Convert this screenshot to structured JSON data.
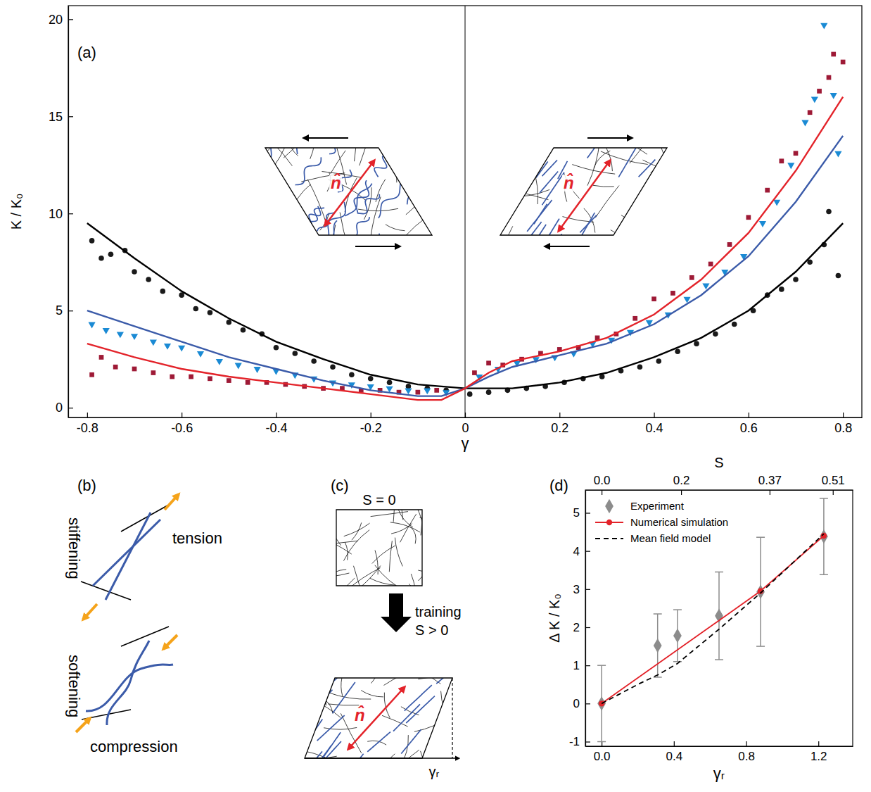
{
  "chart_data": [
    {
      "panel": "(a)",
      "type": "scatter",
      "xlabel": "γ",
      "ylabel": "K / K₀",
      "xlim": [
        -0.84,
        0.84
      ],
      "ylim": [
        -0.5,
        20.7
      ],
      "xticks": [
        -0.8,
        -0.6,
        -0.4,
        -0.2,
        0,
        0.2,
        0.4,
        0.6,
        0.8
      ],
      "yticks": [
        0,
        5,
        10,
        15,
        20
      ],
      "vline": 0,
      "insets": [
        {
          "label": "n̂"
        },
        {
          "label": "n̂"
        }
      ],
      "series": [
        {
          "type": "scatter",
          "marker": "circle",
          "color": "#1a1a1a",
          "x": [
            -0.79,
            -0.77,
            -0.75,
            -0.72,
            -0.7,
            -0.67,
            -0.64,
            -0.6,
            -0.57,
            -0.54,
            -0.5,
            -0.47,
            -0.43,
            -0.4,
            -0.36,
            -0.32,
            -0.28,
            -0.24,
            -0.2,
            -0.16,
            -0.12,
            -0.08,
            -0.04,
            0.01,
            0.05,
            0.09,
            0.13,
            0.17,
            0.21,
            0.25,
            0.29,
            0.33,
            0.37,
            0.41,
            0.45,
            0.49,
            0.53,
            0.57,
            0.61,
            0.64,
            0.67,
            0.7,
            0.73,
            0.76,
            0.77,
            0.79
          ],
          "values": [
            8.6,
            7.7,
            7.9,
            8.1,
            7.0,
            6.6,
            6.0,
            5.8,
            5.1,
            4.9,
            4.4,
            4.0,
            3.8,
            3.1,
            2.8,
            2.4,
            2.1,
            1.7,
            1.5,
            1.3,
            1.1,
            1.0,
            0.9,
            0.7,
            0.8,
            0.9,
            1.0,
            1.1,
            1.3,
            1.5,
            1.6,
            1.9,
            2.1,
            2.4,
            2.9,
            3.3,
            3.8,
            4.3,
            5.0,
            5.8,
            6.1,
            6.6,
            7.5,
            8.4,
            10.1,
            6.8
          ]
        },
        {
          "type": "scatter",
          "marker": "triangle-down",
          "color": "#1a8ad4",
          "x": [
            -0.79,
            -0.76,
            -0.73,
            -0.7,
            -0.66,
            -0.63,
            -0.6,
            -0.56,
            -0.52,
            -0.48,
            -0.44,
            -0.4,
            -0.36,
            -0.32,
            -0.28,
            -0.24,
            -0.2,
            -0.16,
            -0.12,
            -0.08,
            -0.04,
            0.03,
            0.07,
            0.11,
            0.15,
            0.19,
            0.23,
            0.27,
            0.31,
            0.35,
            0.39,
            0.43,
            0.47,
            0.51,
            0.55,
            0.59,
            0.63,
            0.66,
            0.69,
            0.72,
            0.74,
            0.76,
            0.78,
            0.79
          ],
          "values": [
            4.3,
            4.0,
            3.8,
            3.7,
            3.4,
            3.2,
            3.1,
            2.8,
            2.4,
            2.2,
            2.0,
            1.9,
            1.7,
            1.5,
            1.3,
            1.2,
            1.1,
            1.0,
            0.9,
            0.9,
            0.8,
            1.6,
            2.0,
            2.3,
            2.5,
            2.6,
            2.8,
            3.3,
            3.5,
            3.9,
            4.4,
            4.8,
            5.6,
            6.3,
            7.0,
            7.8,
            9.5,
            10.6,
            12.5,
            14.7,
            15.9,
            19.7,
            16.1,
            13.1
          ]
        },
        {
          "type": "scatter",
          "marker": "square",
          "color": "#9e1a36",
          "x": [
            -0.79,
            -0.77,
            -0.74,
            -0.7,
            -0.66,
            -0.62,
            -0.58,
            -0.54,
            -0.5,
            -0.46,
            -0.42,
            -0.38,
            -0.34,
            -0.3,
            -0.26,
            -0.22,
            -0.18,
            -0.14,
            -0.1,
            -0.06,
            0.02,
            0.05,
            0.08,
            0.12,
            0.16,
            0.2,
            0.24,
            0.28,
            0.32,
            0.36,
            0.4,
            0.44,
            0.48,
            0.52,
            0.56,
            0.6,
            0.64,
            0.67,
            0.7,
            0.73,
            0.75,
            0.77,
            0.78,
            0.8
          ],
          "values": [
            1.7,
            2.6,
            2.1,
            2.0,
            1.8,
            1.6,
            1.6,
            1.5,
            1.4,
            1.3,
            1.3,
            1.2,
            1.1,
            1.0,
            1.0,
            0.9,
            0.9,
            0.8,
            0.8,
            0.9,
            1.8,
            2.3,
            2.2,
            2.5,
            2.8,
            3.0,
            3.1,
            3.6,
            3.8,
            4.6,
            5.6,
            5.9,
            6.7,
            7.4,
            8.4,
            9.8,
            11.2,
            12.7,
            13.1,
            15.2,
            16.3,
            17.0,
            18.2,
            17.8
          ]
        },
        {
          "type": "line",
          "color": "#000000",
          "x": [
            -0.8,
            -0.7,
            -0.6,
            -0.5,
            -0.4,
            -0.3,
            -0.2,
            -0.1,
            0,
            0.1,
            0.2,
            0.3,
            0.4,
            0.5,
            0.6,
            0.7,
            0.8
          ],
          "values": [
            9.5,
            7.7,
            6.0,
            4.6,
            3.4,
            2.5,
            1.7,
            1.2,
            1.0,
            1.0,
            1.3,
            1.8,
            2.6,
            3.6,
            5.0,
            7.0,
            9.5
          ]
        },
        {
          "type": "line",
          "color": "#3b5ba9",
          "x": [
            -0.8,
            -0.7,
            -0.6,
            -0.5,
            -0.4,
            -0.3,
            -0.2,
            -0.1,
            -0.05,
            0,
            0.05,
            0.1,
            0.2,
            0.3,
            0.4,
            0.5,
            0.6,
            0.7,
            0.8
          ],
          "values": [
            5.0,
            4.2,
            3.4,
            2.6,
            2.0,
            1.4,
            0.9,
            0.6,
            0.6,
            1.0,
            1.6,
            2.1,
            2.7,
            3.3,
            4.3,
            5.8,
            7.8,
            10.6,
            14.0
          ]
        },
        {
          "type": "line",
          "color": "#e3232a",
          "x": [
            -0.8,
            -0.7,
            -0.6,
            -0.5,
            -0.4,
            -0.3,
            -0.2,
            -0.1,
            -0.05,
            0,
            0.05,
            0.1,
            0.2,
            0.3,
            0.4,
            0.5,
            0.6,
            0.7,
            0.8
          ],
          "values": [
            3.3,
            2.6,
            2.0,
            1.6,
            1.3,
            1.0,
            0.7,
            0.4,
            0.4,
            1.0,
            1.8,
            2.4,
            2.9,
            3.6,
            4.8,
            6.6,
            9.0,
            12.2,
            16.0
          ]
        }
      ]
    },
    {
      "panel": "(d)",
      "type": "scatter",
      "xlabel": "γᵣ",
      "ylabel": "Δ K / K₀",
      "x2label": "S",
      "xlim": [
        -0.09,
        1.39
      ],
      "ylim": [
        -1.12,
        5.6
      ],
      "xticks": [
        {
          "value": 0,
          "label": "0.0"
        },
        0.4,
        0.8,
        1.2
      ],
      "yticks": [
        -1,
        0,
        1,
        2,
        3,
        4,
        5
      ],
      "x2ticks": [
        {
          "value": 0,
          "label": "0.0"
        },
        0.2,
        0.37,
        0.51
      ],
      "x2_positions": [
        0,
        0.44,
        0.93,
        1.28
      ],
      "legend": "upper left",
      "series": [
        {
          "name": "Experiment",
          "type": "scatter",
          "marker": "diamond",
          "color": "#8c8c8c",
          "x": [
            0,
            0.31,
            0.42,
            0.65,
            0.88,
            1.23
          ],
          "values": [
            0,
            1.52,
            1.78,
            2.3,
            2.93,
            4.38
          ],
          "errors": [
            1.0,
            0.83,
            0.68,
            1.15,
            1.43,
            1.0
          ]
        },
        {
          "name": "Numerical simulation",
          "type": "line",
          "marker": "circle",
          "color": "#e3232a",
          "x": [
            0,
            0.88,
            1.23
          ],
          "values": [
            0,
            2.95,
            4.4
          ]
        },
        {
          "name": "Mean field model",
          "type": "line",
          "line_style": "dashed",
          "color": "#000000",
          "x": [
            0,
            0.2,
            0.31,
            0.42,
            0.65,
            0.88,
            1.23
          ],
          "values": [
            0,
            0.5,
            0.75,
            1.05,
            1.95,
            2.9,
            4.45
          ]
        }
      ]
    }
  ],
  "panel_b": {
    "panel": "(b)",
    "top": {
      "label": "stiffening",
      "force": "tension"
    },
    "bottom": {
      "label": "softening",
      "force": "compression"
    }
  },
  "panel_c": {
    "panel": "(c)",
    "before": "S = 0",
    "step": [
      "training",
      "S > 0"
    ],
    "director": "n̂",
    "shear": "γᵣ"
  }
}
